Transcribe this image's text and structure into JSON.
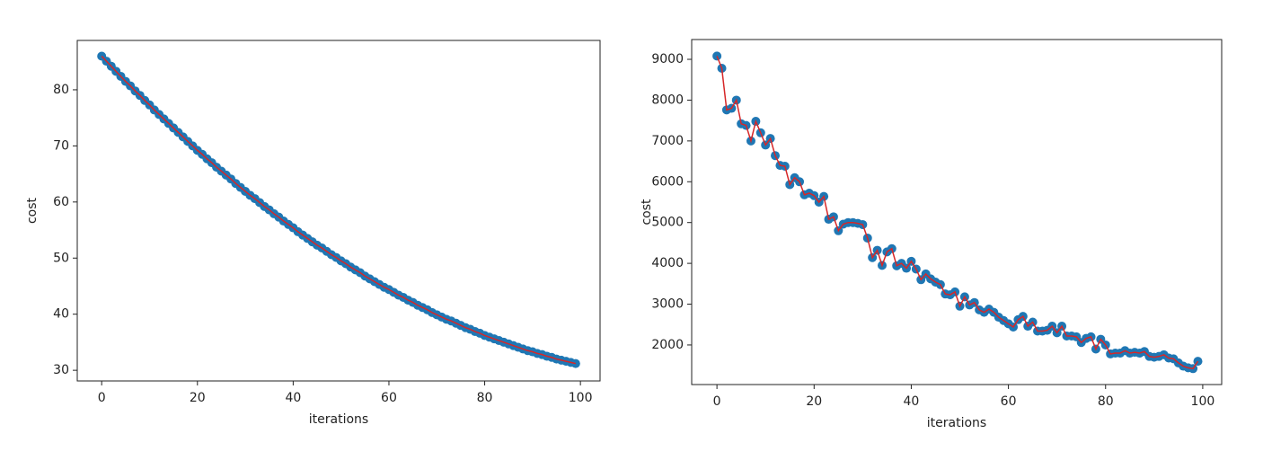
{
  "chart_data": [
    {
      "type": "line",
      "xlabel": "iterations",
      "ylabel": "cost",
      "color": "#d62728",
      "marker_color": "#1f77b4",
      "xlim": [
        -5.1,
        104.1
      ],
      "ylim": [
        28.1,
        88.8
      ],
      "xticks": [
        0,
        20,
        40,
        60,
        80,
        100
      ],
      "yticks": [
        30,
        40,
        50,
        60,
        70,
        80
      ],
      "x": [
        0,
        1,
        2,
        3,
        4,
        5,
        6,
        7,
        8,
        9,
        10,
        11,
        12,
        13,
        14,
        15,
        16,
        17,
        18,
        19,
        20,
        21,
        22,
        23,
        24,
        25,
        26,
        27,
        28,
        29,
        30,
        31,
        32,
        33,
        34,
        35,
        36,
        37,
        38,
        39,
        40,
        41,
        42,
        43,
        44,
        45,
        46,
        47,
        48,
        49,
        50,
        51,
        52,
        53,
        54,
        55,
        56,
        57,
        58,
        59,
        60,
        61,
        62,
        63,
        64,
        65,
        66,
        67,
        68,
        69,
        70,
        71,
        72,
        73,
        74,
        75,
        76,
        77,
        78,
        79,
        80,
        81,
        82,
        83,
        84,
        85,
        86,
        87,
        88,
        89,
        90,
        91,
        92,
        93,
        94,
        95,
        96,
        97,
        98,
        99
      ],
      "values": [
        86.0,
        85.1,
        84.2,
        83.3,
        82.4,
        81.5,
        80.7,
        79.8,
        79.0,
        78.1,
        77.3,
        76.4,
        75.6,
        74.8,
        74.0,
        73.2,
        72.4,
        71.6,
        70.8,
        70.0,
        69.2,
        68.5,
        67.7,
        67.0,
        66.2,
        65.5,
        64.8,
        64.1,
        63.3,
        62.6,
        61.9,
        61.2,
        60.6,
        59.9,
        59.2,
        58.6,
        57.9,
        57.3,
        56.6,
        56.0,
        55.4,
        54.7,
        54.1,
        53.5,
        52.9,
        52.3,
        51.8,
        51.2,
        50.6,
        50.1,
        49.5,
        49.0,
        48.4,
        47.9,
        47.4,
        46.8,
        46.3,
        45.8,
        45.3,
        44.8,
        44.4,
        43.9,
        43.4,
        43.0,
        42.5,
        42.1,
        41.6,
        41.2,
        40.8,
        40.3,
        39.9,
        39.5,
        39.1,
        38.8,
        38.4,
        38.0,
        37.6,
        37.3,
        36.9,
        36.6,
        36.2,
        35.9,
        35.6,
        35.3,
        35.0,
        34.7,
        34.4,
        34.1,
        33.8,
        33.5,
        33.3,
        33.0,
        32.8,
        32.5,
        32.3,
        32.0,
        31.8,
        31.6,
        31.4,
        31.2
      ]
    },
    {
      "type": "line",
      "xlabel": "iterations",
      "ylabel": "cost",
      "color": "#d62728",
      "marker_color": "#1f77b4",
      "xlim": [
        -5.2,
        103.9
      ],
      "ylim": [
        1030,
        9485
      ],
      "xticks": [
        0,
        20,
        40,
        60,
        80,
        100
      ],
      "yticks": [
        2000,
        3000,
        4000,
        5000,
        6000,
        7000,
        8000,
        9000
      ],
      "x": [
        0,
        1,
        2,
        3,
        4,
        5,
        6,
        7,
        8,
        9,
        10,
        11,
        12,
        13,
        14,
        15,
        16,
        17,
        18,
        19,
        20,
        21,
        22,
        23,
        24,
        25,
        26,
        27,
        28,
        29,
        30,
        31,
        32,
        33,
        34,
        35,
        36,
        37,
        38,
        39,
        40,
        41,
        42,
        43,
        44,
        45,
        46,
        47,
        48,
        49,
        50,
        51,
        52,
        53,
        54,
        55,
        56,
        57,
        58,
        59,
        60,
        61,
        62,
        63,
        64,
        65,
        66,
        67,
        68,
        69,
        70,
        71,
        72,
        73,
        74,
        75,
        76,
        77,
        78,
        79,
        80,
        81,
        82,
        83,
        84,
        85,
        86,
        87,
        88,
        89,
        90,
        91,
        92,
        93,
        94,
        95,
        96,
        97,
        98,
        99
      ],
      "values": [
        9080,
        8780,
        7760,
        7800,
        8000,
        7420,
        7380,
        7000,
        7480,
        7200,
        6900,
        7060,
        6640,
        6400,
        6380,
        5930,
        6100,
        6000,
        5680,
        5720,
        5660,
        5500,
        5640,
        5080,
        5140,
        4800,
        4960,
        5000,
        5000,
        4980,
        4950,
        4620,
        4140,
        4320,
        3950,
        4280,
        4360,
        3940,
        4000,
        3880,
        4050,
        3860,
        3600,
        3740,
        3620,
        3540,
        3480,
        3250,
        3230,
        3300,
        2950,
        3180,
        2980,
        3040,
        2860,
        2800,
        2880,
        2800,
        2680,
        2600,
        2520,
        2440,
        2620,
        2700,
        2460,
        2560,
        2340,
        2340,
        2360,
        2460,
        2300,
        2460,
        2220,
        2220,
        2200,
        2060,
        2160,
        2200,
        1900,
        2140,
        2000,
        1780,
        1800,
        1800,
        1860,
        1800,
        1820,
        1800,
        1840,
        1720,
        1700,
        1720,
        1760,
        1680,
        1660,
        1560,
        1480,
        1440,
        1420,
        1600
      ]
    }
  ]
}
